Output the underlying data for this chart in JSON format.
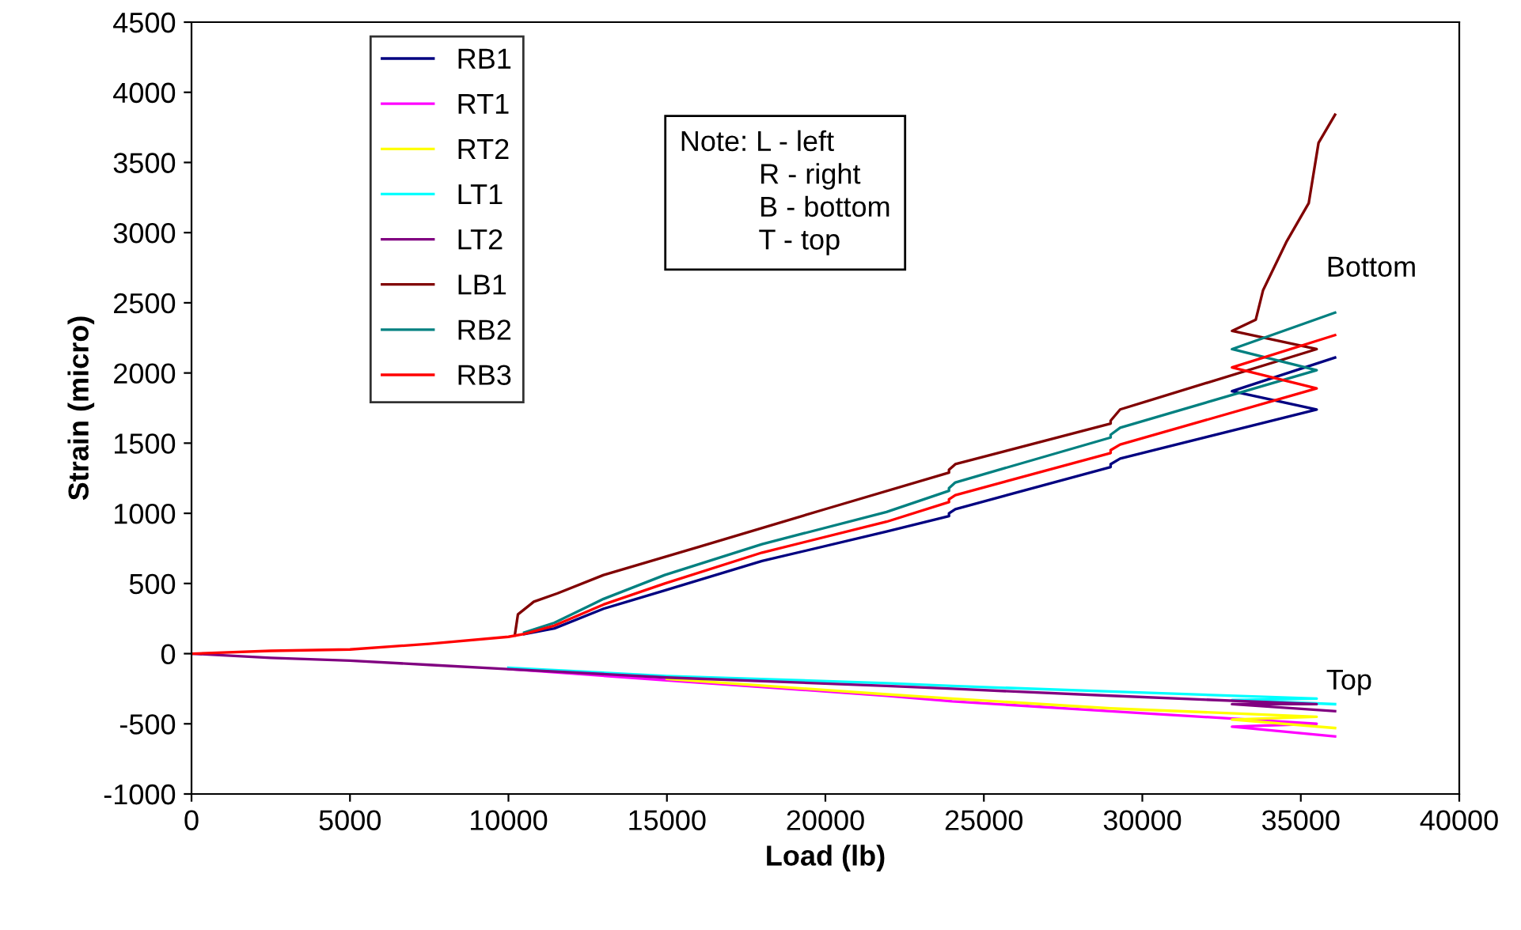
{
  "chart_data": {
    "type": "line",
    "xlabel": "Load (lb)",
    "ylabel": "Strain (micro)",
    "xlim": [
      0,
      40000
    ],
    "ylim": [
      -1000,
      4500
    ],
    "xticks": [
      0,
      5000,
      10000,
      15000,
      20000,
      25000,
      30000,
      35000,
      40000
    ],
    "yticks": [
      -1000,
      -500,
      0,
      500,
      1000,
      1500,
      2000,
      2500,
      3000,
      3500,
      4000,
      4500
    ],
    "grid": false,
    "legend": "top left",
    "marker": "none",
    "line_style": "solid",
    "annotations": [
      "Note: L - left\n          R - right\n          B - bottom\n          T - top",
      "Bottom",
      "Top"
    ],
    "series": [
      {
        "name": "RB1",
        "color": "#000080",
        "x": [
          10500,
          11450,
          13000,
          14930,
          18000,
          21930,
          23900,
          23900,
          24100,
          29000,
          29000,
          29300,
          35500,
          32830,
          36080
        ],
        "values": [
          140,
          180,
          320,
          450,
          660,
          870,
          980,
          1000,
          1030,
          1330,
          1350,
          1390,
          1740,
          1870,
          2110
        ]
      },
      {
        "name": "RT1",
        "color": "#ff00ff",
        "x": [
          10000,
          15000,
          21930,
          24000,
          29000,
          35500,
          32830,
          36080
        ],
        "values": [
          -110,
          -190,
          -300,
          -340,
          -410,
          -500,
          -520,
          -590
        ]
      },
      {
        "name": "RT2",
        "color": "#ffff00",
        "x": [
          15000,
          21930,
          24000,
          29000,
          35500,
          32830,
          36080
        ],
        "values": [
          -180,
          -290,
          -320,
          -390,
          -450,
          -470,
          -530
        ]
      },
      {
        "name": "LT1",
        "color": "#00ffff",
        "x": [
          10000,
          15000,
          21930,
          24000,
          29000,
          35500,
          32830,
          36080
        ],
        "values": [
          -100,
          -160,
          -210,
          -230,
          -270,
          -320,
          -330,
          -360
        ]
      },
      {
        "name": "LT2",
        "color": "#800080",
        "x": [
          0,
          2500,
          5000,
          7500,
          10000,
          15000,
          21930,
          24000,
          29000,
          35500,
          32830,
          36080
        ],
        "values": [
          0,
          -30,
          -50,
          -80,
          -110,
          -170,
          -230,
          -250,
          -300,
          -360,
          -360,
          -410
        ]
      },
      {
        "name": "LB1",
        "color": "#800000",
        "x": [
          10200,
          10300,
          10800,
          11550,
          13000,
          16000,
          20000,
          23900,
          23900,
          24100,
          29000,
          29000,
          29300,
          35500,
          32830,
          33580,
          33810,
          34560,
          35250,
          35560,
          36080
        ],
        "values": [
          130,
          280,
          370,
          430,
          560,
          760,
          1030,
          1290,
          1310,
          1350,
          1640,
          1660,
          1740,
          2170,
          2300,
          2380,
          2590,
          2940,
          3210,
          3640,
          3840
        ]
      },
      {
        "name": "RB2",
        "color": "#008080",
        "x": [
          10500,
          11450,
          13000,
          14930,
          18000,
          21930,
          23900,
          23900,
          24100,
          29000,
          29000,
          29300,
          35500,
          32830,
          36080
        ],
        "values": [
          150,
          220,
          390,
          560,
          780,
          1010,
          1160,
          1180,
          1220,
          1540,
          1560,
          1610,
          2020,
          2170,
          2430
        ]
      },
      {
        "name": "RB3",
        "color": "#ff0000",
        "x": [
          0,
          2500,
          5000,
          7500,
          10000,
          10500,
          11450,
          13000,
          14930,
          18000,
          21930,
          23900,
          23900,
          24100,
          29000,
          29000,
          29300,
          35500,
          32830,
          36080
        ],
        "values": [
          0,
          20,
          30,
          70,
          120,
          140,
          200,
          350,
          500,
          720,
          940,
          1080,
          1100,
          1130,
          1430,
          1450,
          1490,
          1890,
          2040,
          2270
        ]
      }
    ]
  }
}
